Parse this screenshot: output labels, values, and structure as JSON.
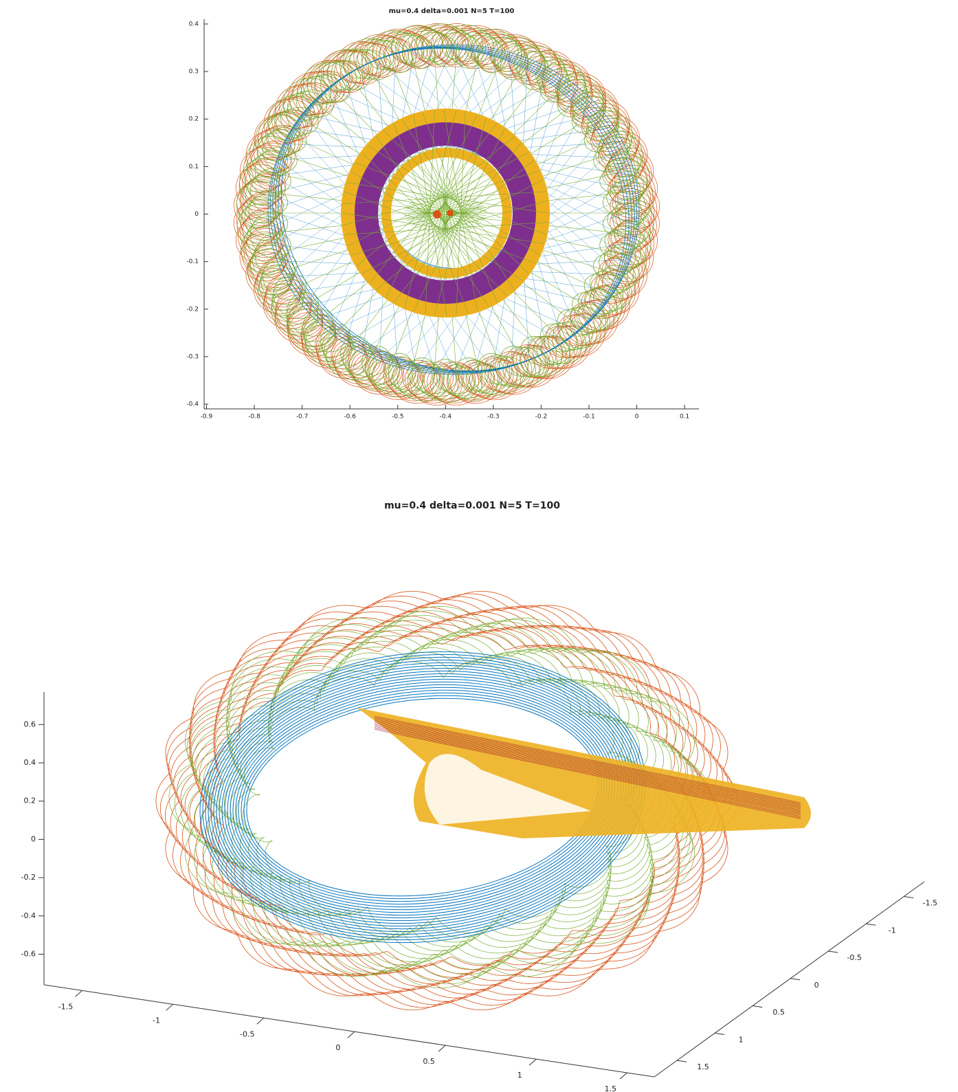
{
  "chart_data": [
    {
      "type": "line",
      "title": "mu=0.4 delta=0.001 N=5 T=100",
      "xlim": [
        -0.905,
        0.13
      ],
      "ylim": [
        -0.41,
        0.41
      ],
      "xticks": [
        -0.9,
        -0.8,
        -0.7,
        -0.6,
        -0.5,
        -0.4,
        -0.3,
        -0.2,
        -0.1,
        0,
        0.1
      ],
      "yticks": [
        -0.4,
        -0.3,
        -0.2,
        -0.1,
        0,
        0.1,
        0.2,
        0.3,
        0.4
      ]
    },
    {
      "type": "line3d",
      "title": "mu=0.4 delta=0.001 N=5 T=100",
      "xlim": [
        -1.71,
        1.65
      ],
      "ylim": [
        -1.77,
        1.8
      ],
      "zlim": [
        -0.76,
        0.77
      ],
      "xticks": [
        -1.5,
        -1,
        -0.5,
        0,
        0.5,
        1,
        1.5
      ],
      "yticks": [
        -1.5,
        -1,
        -0.5,
        0,
        0.5,
        1,
        1.5
      ],
      "zticks": [
        -0.6,
        -0.4,
        -0.2,
        0,
        0.2,
        0.4,
        0.6
      ]
    }
  ]
}
